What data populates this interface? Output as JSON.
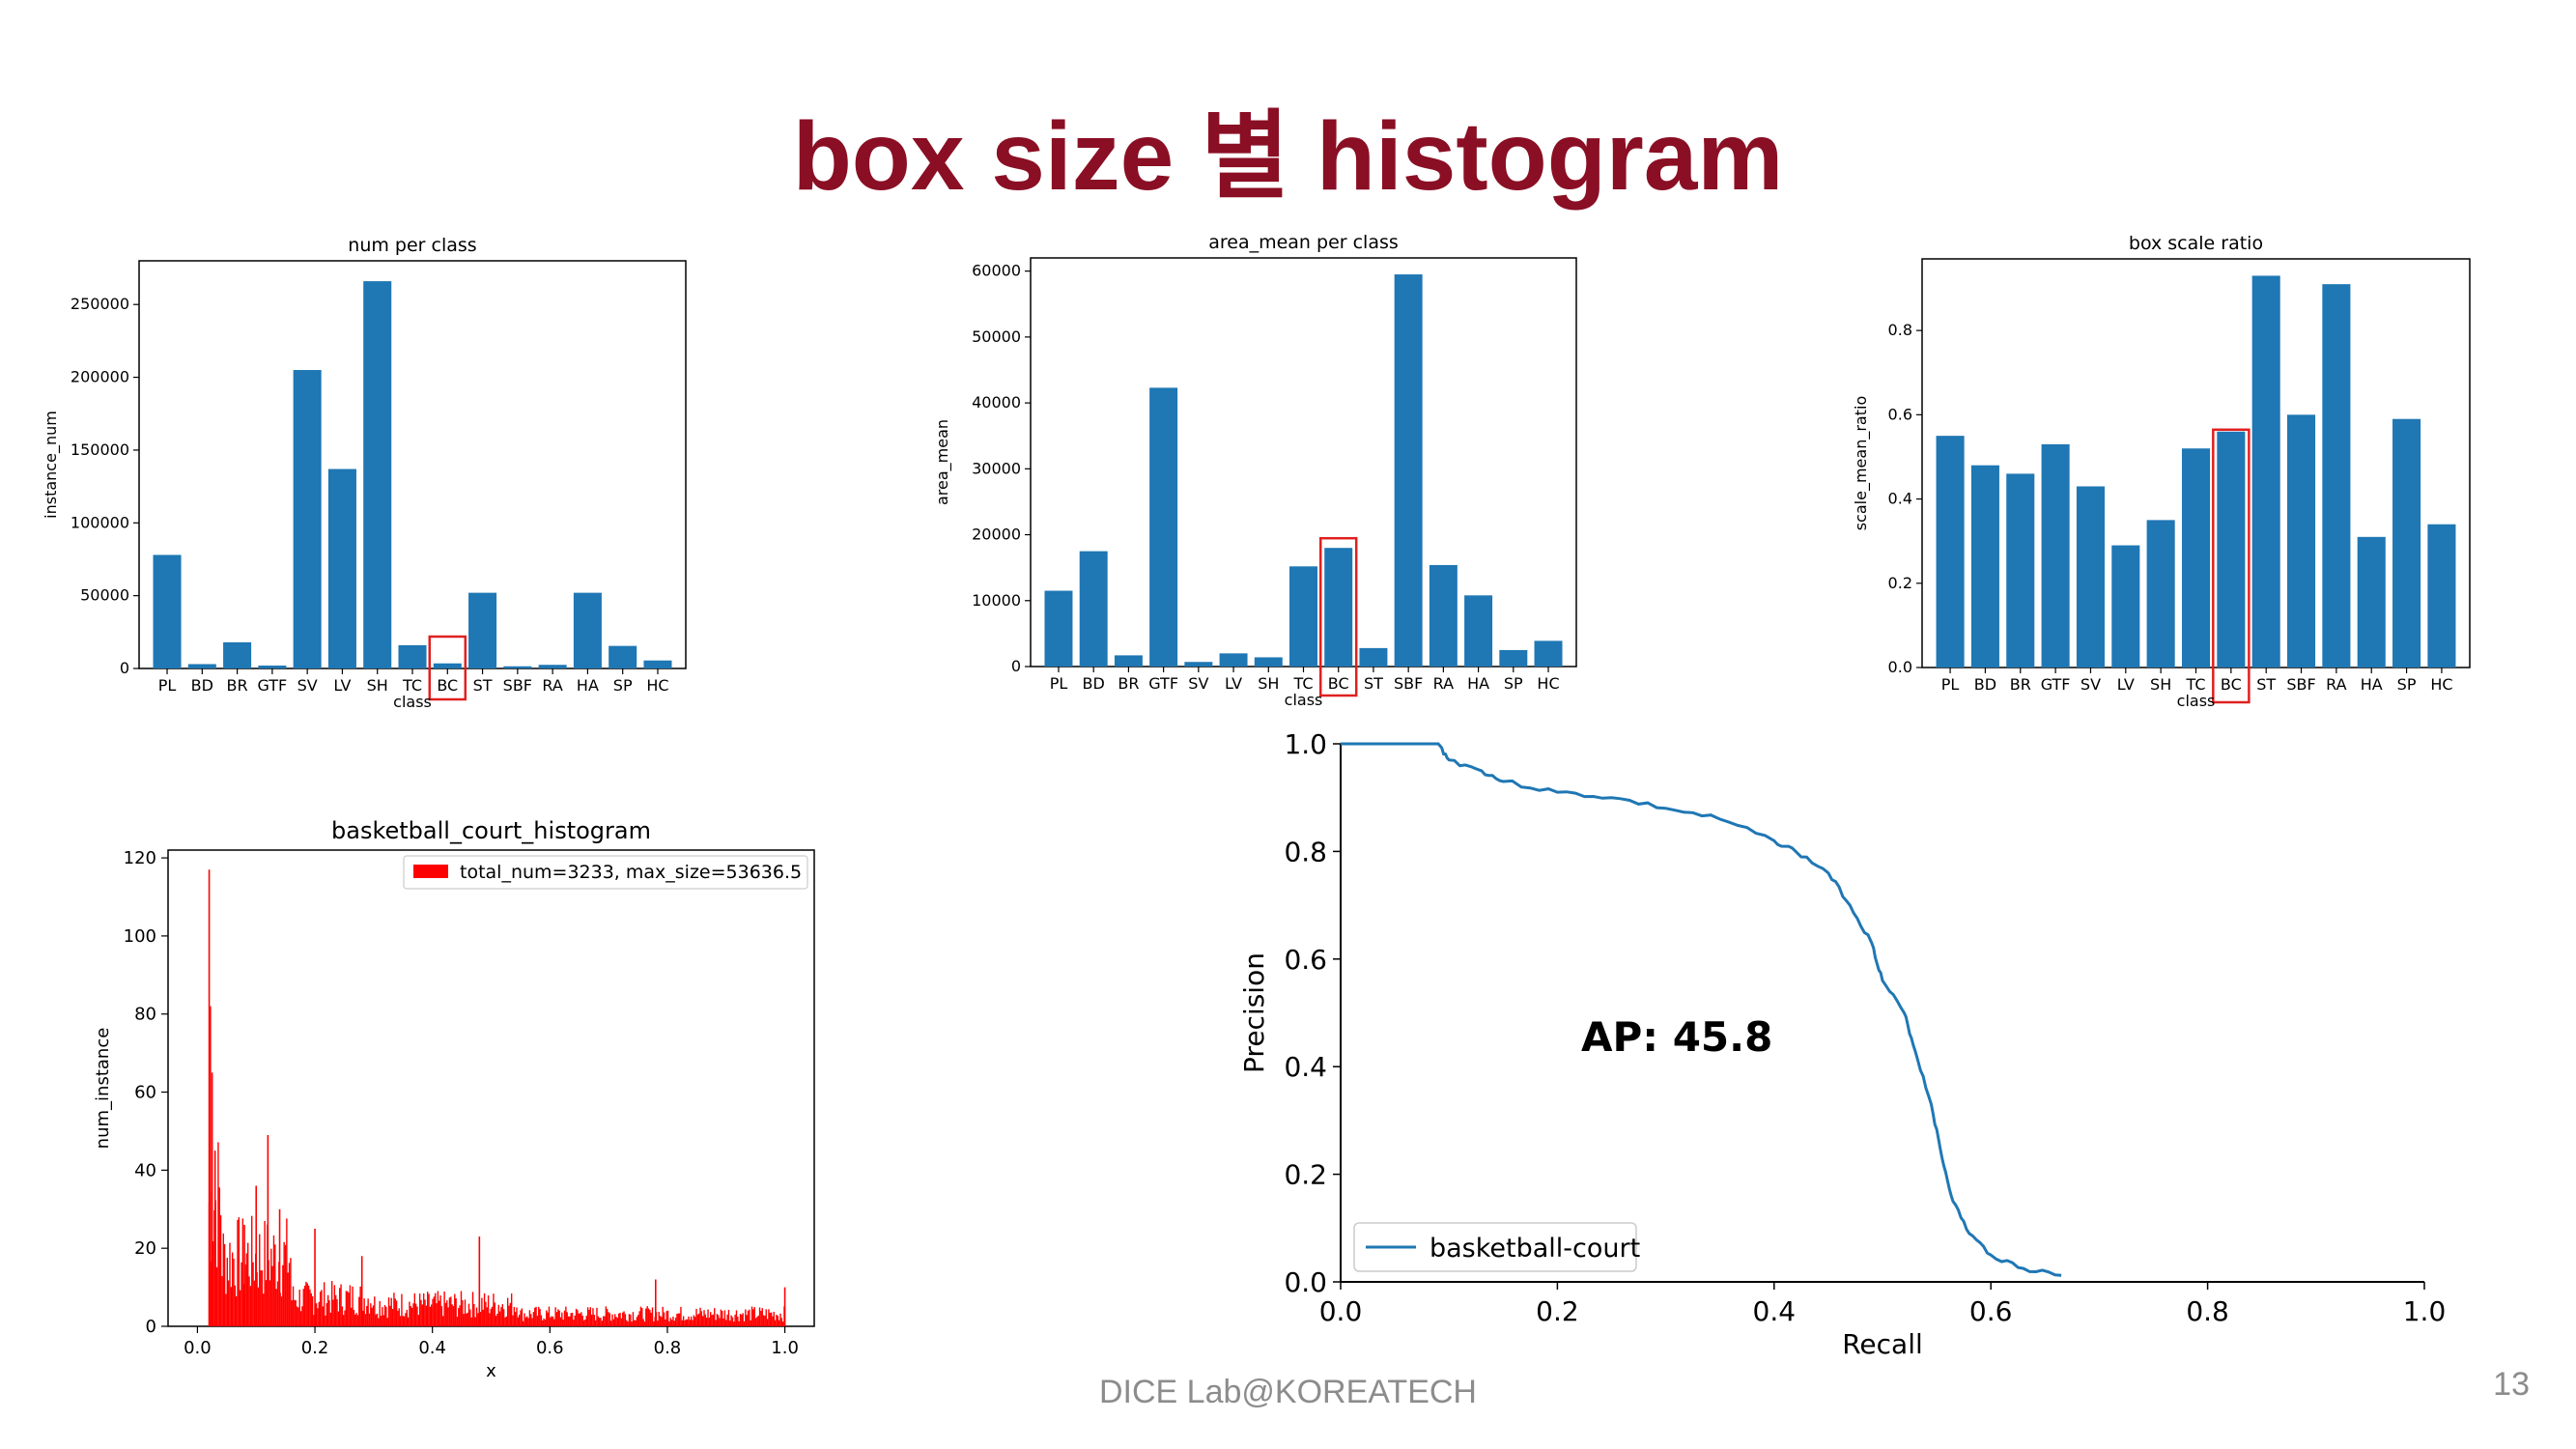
{
  "slide": {
    "title": "box size 별 histogram",
    "footer": "DICE Lab@KOREATECH",
    "page_number": "13"
  },
  "annotation": {
    "ap_text": "AP: 45.8"
  },
  "colors": {
    "bar": "#1f77b4",
    "highlight": "#e02020",
    "hist": "#ff0000",
    "title": "#8a0f24"
  },
  "chart_data": [
    {
      "id": "num",
      "type": "bar",
      "title": "num per class",
      "xlabel": "class",
      "ylabel": "instance_num",
      "categories": [
        "PL",
        "BD",
        "BR",
        "GTF",
        "SV",
        "LV",
        "SH",
        "TC",
        "BC",
        "ST",
        "SBF",
        "RA",
        "HA",
        "SP",
        "HC"
      ],
      "values": [
        78000,
        3000,
        18000,
        2000,
        205000,
        137000,
        266000,
        16000,
        3500,
        52000,
        1500,
        2500,
        52000,
        15500,
        5500
      ],
      "ylim": [
        0,
        280000
      ],
      "yticks": [
        0,
        50000,
        100000,
        150000,
        200000,
        250000
      ],
      "highlight": "BC"
    },
    {
      "id": "area",
      "type": "bar",
      "title": "area_mean per class",
      "xlabel": "class",
      "ylabel": "area_mean",
      "categories": [
        "PL",
        "BD",
        "BR",
        "GTF",
        "SV",
        "LV",
        "SH",
        "TC",
        "BC",
        "ST",
        "SBF",
        "RA",
        "HA",
        "SP",
        "HC"
      ],
      "values": [
        11500,
        17500,
        1700,
        42300,
        700,
        2000,
        1400,
        15200,
        18000,
        2800,
        59500,
        15400,
        10800,
        2500,
        3900
      ],
      "ylim": [
        0,
        62000
      ],
      "yticks": [
        0,
        10000,
        20000,
        30000,
        40000,
        50000,
        60000
      ],
      "highlight": "BC"
    },
    {
      "id": "scale",
      "type": "bar",
      "title": "box scale ratio",
      "xlabel": "class",
      "ylabel": "scale_mean_ratio",
      "categories": [
        "PL",
        "BD",
        "BR",
        "GTF",
        "SV",
        "LV",
        "SH",
        "TC",
        "BC",
        "ST",
        "SBF",
        "RA",
        "HA",
        "SP",
        "HC"
      ],
      "values": [
        0.55,
        0.48,
        0.46,
        0.53,
        0.43,
        0.29,
        0.35,
        0.52,
        0.56,
        0.93,
        0.6,
        0.91,
        0.31,
        0.59,
        0.34
      ],
      "ylim": [
        0,
        0.97
      ],
      "yticks": [
        0.0,
        0.2,
        0.4,
        0.6,
        0.8
      ],
      "highlight": "BC"
    },
    {
      "id": "hist",
      "type": "bar",
      "title": "basketball_court_histogram",
      "xlabel": "x",
      "ylabel": "num_instance",
      "legend": "total_num=3233, max_size=53636.5",
      "xlim": [
        -0.05,
        1.05
      ],
      "ylim": [
        0,
        122
      ],
      "xticks": [
        0.0,
        0.2,
        0.4,
        0.6,
        0.8,
        1.0
      ],
      "yticks": [
        0,
        20,
        40,
        60,
        80,
        100,
        120
      ],
      "peaks": [
        {
          "x": 0.02,
          "y": 117
        },
        {
          "x": 0.022,
          "y": 82
        },
        {
          "x": 0.025,
          "y": 65
        },
        {
          "x": 0.03,
          "y": 45
        },
        {
          "x": 0.08,
          "y": 26
        },
        {
          "x": 0.1,
          "y": 36
        },
        {
          "x": 0.12,
          "y": 49
        },
        {
          "x": 0.14,
          "y": 30
        },
        {
          "x": 0.2,
          "y": 25
        },
        {
          "x": 0.28,
          "y": 18
        },
        {
          "x": 0.48,
          "y": 23
        },
        {
          "x": 0.78,
          "y": 12
        },
        {
          "x": 1.0,
          "y": 10
        }
      ]
    },
    {
      "id": "pr",
      "type": "line",
      "xlabel": "Recall",
      "ylabel": "Precision",
      "legend": "basketball-court",
      "xlim": [
        0,
        1
      ],
      "ylim": [
        0,
        1
      ],
      "xticks": [
        0.0,
        0.2,
        0.4,
        0.6,
        0.8,
        1.0
      ],
      "yticks": [
        0.0,
        0.2,
        0.4,
        0.6,
        0.8,
        1.0
      ],
      "x": [
        0.0,
        0.09,
        0.1,
        0.13,
        0.15,
        0.2,
        0.25,
        0.3,
        0.35,
        0.4,
        0.42,
        0.45,
        0.47,
        0.49,
        0.5,
        0.52,
        0.53,
        0.545,
        0.555,
        0.565,
        0.58,
        0.6,
        0.63,
        0.665
      ],
      "y": [
        1.0,
        1.0,
        0.97,
        0.95,
        0.93,
        0.91,
        0.9,
        0.88,
        0.86,
        0.82,
        0.8,
        0.76,
        0.7,
        0.63,
        0.56,
        0.5,
        0.43,
        0.33,
        0.23,
        0.15,
        0.09,
        0.05,
        0.025,
        0.012
      ]
    }
  ]
}
